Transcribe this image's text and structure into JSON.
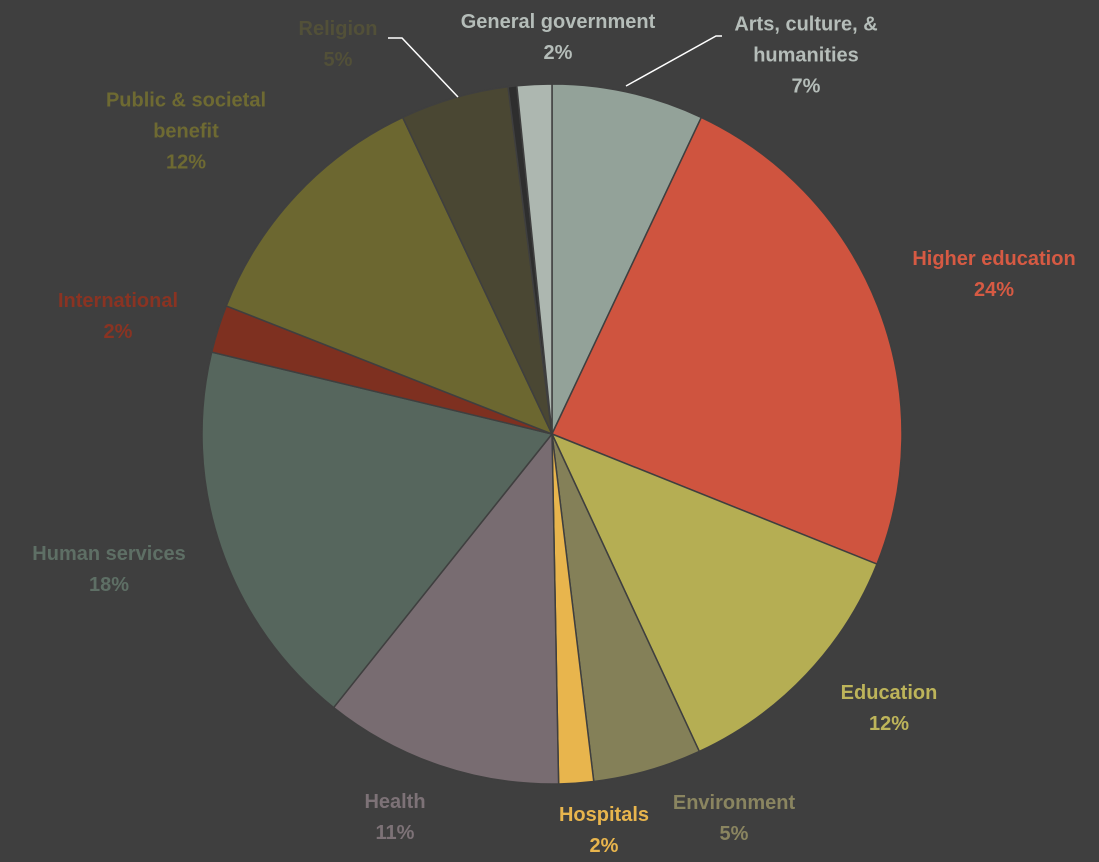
{
  "colors": {
    "background": "#3f3f3f",
    "leader_line": "#ffffff",
    "slice_separator": "#3f3f3f"
  },
  "chart_data": {
    "type": "pie",
    "title": "",
    "start_angle_deg": 0,
    "direction": "clockwise",
    "slices": [
      {
        "label": "Arts, culture, & humanities",
        "value": 7,
        "pct_text": "7%",
        "color": "#93a299",
        "label_color": "#b5bdb9",
        "leader": true
      },
      {
        "label": "Higher education",
        "value": 24,
        "pct_text": "24%",
        "color": "#cf543f",
        "label_color": "#d65a43"
      },
      {
        "label": "Education",
        "value": 12,
        "pct_text": "12%",
        "color": "#b5ae53",
        "label_color": "#bdb45a"
      },
      {
        "label": "Environment",
        "value": 5,
        "pct_text": "5%",
        "color": "#848058",
        "label_color": "#8a8560"
      },
      {
        "label": "Hospitals",
        "value": 1.6,
        "pct_text": "2%",
        "color": "#e8b54d",
        "label_color": "#e8b54d"
      },
      {
        "label": "Health",
        "value": 11,
        "pct_text": "11%",
        "color": "#786c71",
        "label_color": "#7d7277"
      },
      {
        "label": "Human services",
        "value": 18,
        "pct_text": "18%",
        "color": "#56665d",
        "label_color": "#5e6f65"
      },
      {
        "label": "International",
        "value": 2.2,
        "pct_text": "2%",
        "color": "#7e3020",
        "label_color": "#8a3322"
      },
      {
        "label": "Public & societal benefit",
        "value": 12,
        "pct_text": "12%",
        "color": "#6c6730",
        "label_color": "#6e6a32"
      },
      {
        "label": "Religion",
        "value": 5,
        "pct_text": "5%",
        "color": "#4a4733",
        "label_color": "#525038",
        "leader": true
      },
      {
        "label": "General government",
        "value": 0.4,
        "pct_text": "",
        "color": "#2e2e2e",
        "label_color": "#b5bdb9"
      },
      {
        "label": "General government",
        "value": 1.6,
        "pct_text": "2%",
        "color": "#adb7b0",
        "label_color": "#b5bdb9"
      }
    ],
    "legend": "none",
    "data_labels": "category name and percentage"
  }
}
